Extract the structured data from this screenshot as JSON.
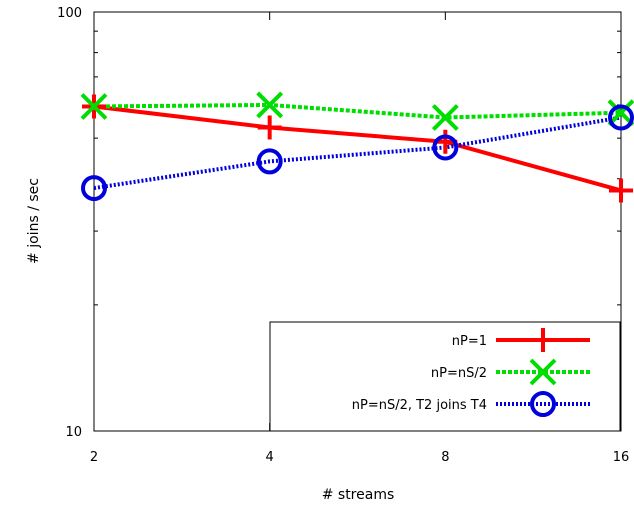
{
  "chart_data": {
    "type": "line",
    "xlabel": "# streams",
    "ylabel": "# joins / sec",
    "x_scale": "log2",
    "y_scale": "log10",
    "x": [
      2,
      4,
      8,
      16
    ],
    "xticks": [
      "2",
      "4",
      "8",
      "16"
    ],
    "yticks": [
      "10",
      "100"
    ],
    "xlim": [
      2,
      16
    ],
    "ylim": [
      10,
      100
    ],
    "grid": false,
    "legend_position": "bottom-right",
    "series": [
      {
        "name": "nP=1",
        "values": [
          59.5,
          53,
          49,
          37.5
        ],
        "color": "#ff0000",
        "marker": "plus",
        "line_style": "solid"
      },
      {
        "name": "nP=nS/2",
        "values": [
          59.5,
          60,
          56,
          57.5
        ],
        "color": "#00dd00",
        "marker": "cross",
        "line_style": "dotted"
      },
      {
        "name": "nP=nS/2, T2 joins T4",
        "values": [
          38,
          44,
          47.5,
          56
        ],
        "color": "#0000dd",
        "marker": "circle",
        "line_style": "dotted"
      }
    ]
  }
}
